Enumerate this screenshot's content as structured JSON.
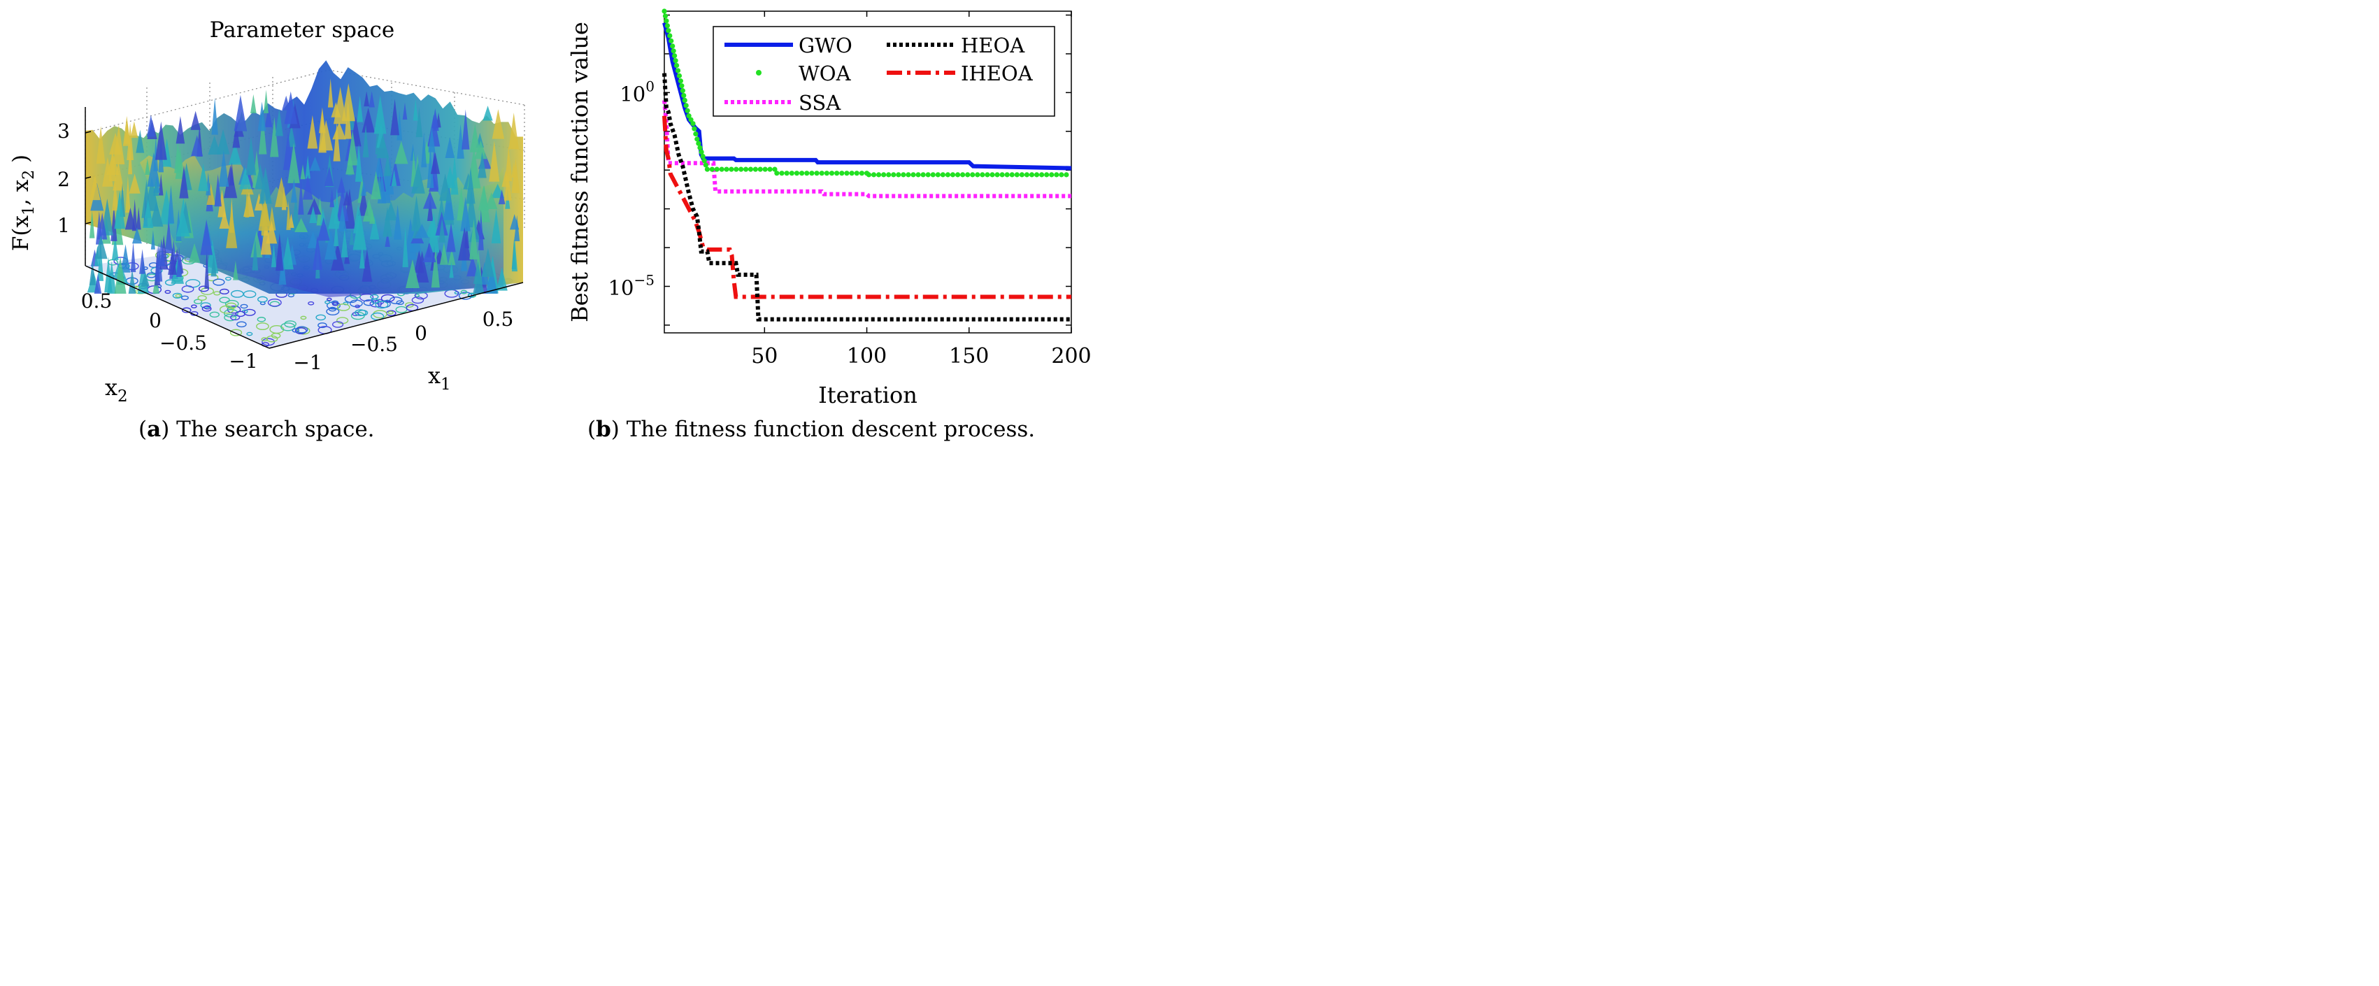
{
  "figure_a": {
    "caption_letter": "a",
    "caption_text": "The search space.",
    "chart_data": {
      "type": "surface3d",
      "title": "Parameter space",
      "zlabel_parts": [
        "F(",
        "x",
        "1",
        ", ",
        "x",
        "2",
        " )"
      ],
      "xlabel": {
        "base": "x",
        "sub": "1"
      },
      "ylabel": {
        "base": "x",
        "sub": "2"
      },
      "x_ticks": [
        "−1",
        "−0.5",
        "0",
        "0.5"
      ],
      "y_ticks": [
        "−1",
        "−0.5",
        "0",
        "0.5"
      ],
      "z_ticks": [
        "1",
        "2",
        "3"
      ],
      "x_range": [
        -1,
        1
      ],
      "y_range": [
        -1,
        1
      ],
      "z_range": [
        0,
        3.5
      ],
      "colormap": "parula",
      "colors": {
        "low": "#3a3ad0",
        "mid": "#2aa6c8",
        "high": "#e8c43a",
        "contour": "#4a4ad8"
      }
    }
  },
  "figure_b": {
    "caption_letter": "b",
    "caption_text": "The fitness function descent process.",
    "chart_data": {
      "type": "line",
      "xlabel": "Iteration",
      "ylabel": "Best fitness function value",
      "x_range": [
        1,
        200
      ],
      "y_scale": "log",
      "y_range_log10": [
        -6.2,
        2.1
      ],
      "x_ticks": [
        "50",
        "100",
        "150",
        "200"
      ],
      "x_tick_values": [
        50,
        100,
        150,
        200
      ],
      "y_ticks": [
        {
          "base": "10",
          "exp": "0",
          "log10": 0
        },
        {
          "base": "10",
          "exp": "−5",
          "log10": -5
        }
      ],
      "series": [
        {
          "name": "GWO",
          "color": "#0a1ee8",
          "style": "solid",
          "points": [
            [
              1,
              1.8
            ],
            [
              3,
              1.4
            ],
            [
              5,
              0.8
            ],
            [
              7,
              0.4
            ],
            [
              9,
              0
            ],
            [
              11,
              -0.4
            ],
            [
              13,
              -0.7
            ],
            [
              16,
              -0.9
            ],
            [
              18,
              -1.0
            ],
            [
              19,
              -1.6
            ],
            [
              20,
              -1.7
            ],
            [
              35,
              -1.7
            ],
            [
              36,
              -1.74
            ],
            [
              75,
              -1.74
            ],
            [
              76,
              -1.8
            ],
            [
              150,
              -1.8
            ],
            [
              152,
              -1.9
            ],
            [
              200,
              -1.95
            ]
          ]
        },
        {
          "name": "WOA",
          "color": "#22e022",
          "style": "dots",
          "points": [
            [
              1,
              2.1
            ],
            [
              3,
              1.6
            ],
            [
              5,
              1.2
            ],
            [
              7,
              0.7
            ],
            [
              9,
              0.3
            ],
            [
              11,
              -0.2
            ],
            [
              13,
              -0.6
            ],
            [
              15,
              -0.8
            ],
            [
              17,
              -1.2
            ],
            [
              22,
              -1.98
            ],
            [
              55,
              -1.98
            ],
            [
              56,
              -2.08
            ],
            [
              100,
              -2.08
            ],
            [
              101,
              -2.12
            ],
            [
              200,
              -2.12
            ]
          ]
        },
        {
          "name": "SSA",
          "color": "#ff22ff",
          "style": "dotted",
          "points": [
            [
              1,
              -0.2
            ],
            [
              2,
              -0.8
            ],
            [
              3,
              -1.82
            ],
            [
              25,
              -1.82
            ],
            [
              26,
              -2.55
            ],
            [
              78,
              -2.55
            ],
            [
              79,
              -2.62
            ],
            [
              100,
              -2.62
            ],
            [
              101,
              -2.67
            ],
            [
              200,
              -2.67
            ]
          ]
        },
        {
          "name": "HEOA",
          "color": "#000000",
          "style": "dotted",
          "points": [
            [
              1,
              0.5
            ],
            [
              2,
              -0.4
            ],
            [
              3,
              -0.5
            ],
            [
              4,
              -0.8
            ],
            [
              6,
              -1.1
            ],
            [
              8,
              -1.6
            ],
            [
              10,
              -1.9
            ],
            [
              13,
              -2.6
            ],
            [
              15,
              -3.0
            ],
            [
              17,
              -3.2
            ],
            [
              18,
              -3.6
            ],
            [
              19,
              -4.1
            ],
            [
              22,
              -4.1
            ],
            [
              23,
              -4.4
            ],
            [
              36,
              -4.4
            ],
            [
              37,
              -4.7
            ],
            [
              46,
              -4.7
            ],
            [
              47,
              -5.85
            ],
            [
              200,
              -5.85
            ]
          ]
        },
        {
          "name": "IHEOA",
          "color": "#ee1010",
          "style": "dashdot",
          "points": [
            [
              1,
              -0.6
            ],
            [
              2,
              -1.5
            ],
            [
              3,
              -1.7
            ],
            [
              4,
              -2.1
            ],
            [
              6,
              -2.3
            ],
            [
              8,
              -2.5
            ],
            [
              10,
              -2.7
            ],
            [
              12,
              -2.9
            ],
            [
              14,
              -3.1
            ],
            [
              16,
              -3.3
            ],
            [
              18,
              -3.6
            ],
            [
              20,
              -4.0
            ],
            [
              22,
              -4.05
            ],
            [
              33,
              -4.05
            ],
            [
              34,
              -4.2
            ],
            [
              35,
              -4.85
            ],
            [
              36,
              -5.27
            ],
            [
              200,
              -5.27
            ]
          ]
        }
      ],
      "legend_position": "top-right"
    }
  }
}
